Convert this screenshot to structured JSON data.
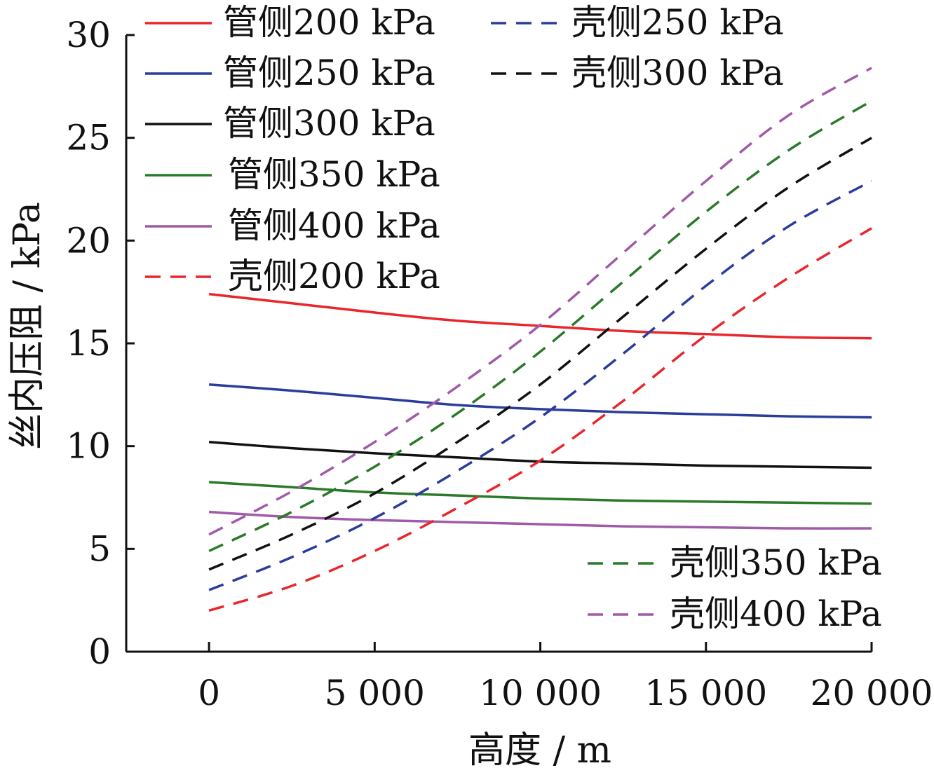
{
  "chart_data": {
    "type": "line",
    "xlabel": "高度 / m",
    "ylabel": "丝内压阻 / kPa",
    "xlim": [
      -2500,
      20000
    ],
    "ylim": [
      0,
      30
    ],
    "x_ticks": [
      0,
      5000,
      10000,
      15000,
      20000
    ],
    "x_tick_labels": [
      "0",
      "5 000",
      "10 000",
      "15 000",
      "20 000"
    ],
    "y_ticks": [
      0,
      5,
      10,
      15,
      20,
      25,
      30
    ],
    "y_tick_labels": [
      "0",
      "5",
      "10",
      "15",
      "20",
      "25",
      "30"
    ],
    "grid": false,
    "legend_placement": "top-left, top-center and bottom-right",
    "x": [
      0,
      2500,
      5000,
      7500,
      10000,
      12500,
      15000,
      17500,
      20000
    ],
    "series": [
      {
        "name": "管侧200 kPa",
        "color": "#e8262b",
        "style": "solid",
        "values": [
          17.4,
          16.95,
          16.5,
          16.1,
          15.85,
          15.6,
          15.45,
          15.3,
          15.25
        ]
      },
      {
        "name": "管侧250 kPa",
        "color": "#2b3d9a",
        "style": "solid",
        "values": [
          13.0,
          12.7,
          12.35,
          12.0,
          11.8,
          11.65,
          11.55,
          11.45,
          11.4
        ]
      },
      {
        "name": "管侧300 kPa",
        "color": "#111111",
        "style": "solid",
        "values": [
          10.2,
          9.9,
          9.65,
          9.45,
          9.25,
          9.15,
          9.05,
          9.0,
          8.95
        ]
      },
      {
        "name": "管侧350 kPa",
        "color": "#2a7a2a",
        "style": "solid",
        "values": [
          8.25,
          8.0,
          7.75,
          7.6,
          7.45,
          7.35,
          7.3,
          7.25,
          7.2
        ]
      },
      {
        "name": "管侧400 kPa",
        "color": "#a05aa8",
        "style": "solid",
        "values": [
          6.8,
          6.55,
          6.4,
          6.3,
          6.2,
          6.1,
          6.05,
          6.0,
          6.0
        ]
      },
      {
        "name": "壳侧200 kPa",
        "color": "#e8262b",
        "style": "dashed",
        "values": [
          2.0,
          3.2,
          4.9,
          7.0,
          9.3,
          12.2,
          15.4,
          18.2,
          20.6
        ]
      },
      {
        "name": "壳侧250 kPa",
        "color": "#2b3d9a",
        "style": "dashed",
        "values": [
          3.0,
          4.6,
          6.5,
          8.8,
          11.4,
          14.5,
          17.8,
          20.7,
          22.9
        ]
      },
      {
        "name": "壳侧300 kPa",
        "color": "#111111",
        "style": "dashed",
        "values": [
          4.0,
          5.7,
          7.7,
          10.2,
          13.0,
          16.3,
          19.6,
          22.6,
          25.0
        ]
      },
      {
        "name": "壳侧350 kPa",
        "color": "#2a7a2a",
        "style": "dashed",
        "values": [
          4.9,
          6.8,
          9.0,
          11.6,
          14.6,
          18.0,
          21.4,
          24.4,
          26.8
        ]
      },
      {
        "name": "壳侧400 kPa",
        "color": "#a05aa8",
        "style": "dashed",
        "values": [
          5.7,
          7.8,
          10.2,
          12.9,
          15.9,
          19.4,
          22.9,
          26.1,
          28.4
        ]
      }
    ]
  }
}
